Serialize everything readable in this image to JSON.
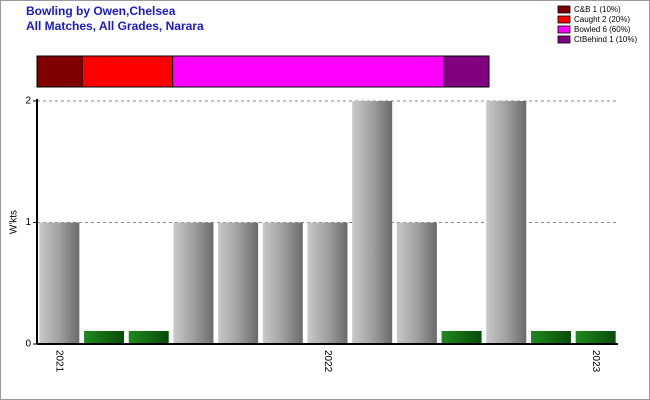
{
  "chart_data": {
    "type": "bar",
    "title": "Bowling by Owen,Chelsea",
    "subtitle": "All Matches, All Grades, Narara",
    "ylabel": "W'kts",
    "categories": [
      "2021",
      null,
      null,
      null,
      null,
      null,
      "2022",
      null,
      null,
      null,
      null,
      null,
      "2023"
    ],
    "values": [
      1,
      0,
      0,
      1,
      1,
      1,
      1,
      2,
      1,
      0,
      2,
      0,
      0
    ],
    "color": "#999999",
    "zero_color": "#127012",
    "ylim": [
      0,
      2
    ],
    "yticks": [
      0,
      1,
      2
    ],
    "grid": true,
    "dismissals": [
      {
        "name": "C&B 1 (10%)",
        "color": "#800000",
        "value": 1
      },
      {
        "name": "Caught 2 (20%)",
        "color": "#ff0000",
        "value": 2
      },
      {
        "name": "Bowled 6 (60%)",
        "color": "#ff00ff",
        "value": 6
      },
      {
        "name": "CtBehind 1 (10%)",
        "color": "#800080",
        "value": 1
      }
    ]
  }
}
